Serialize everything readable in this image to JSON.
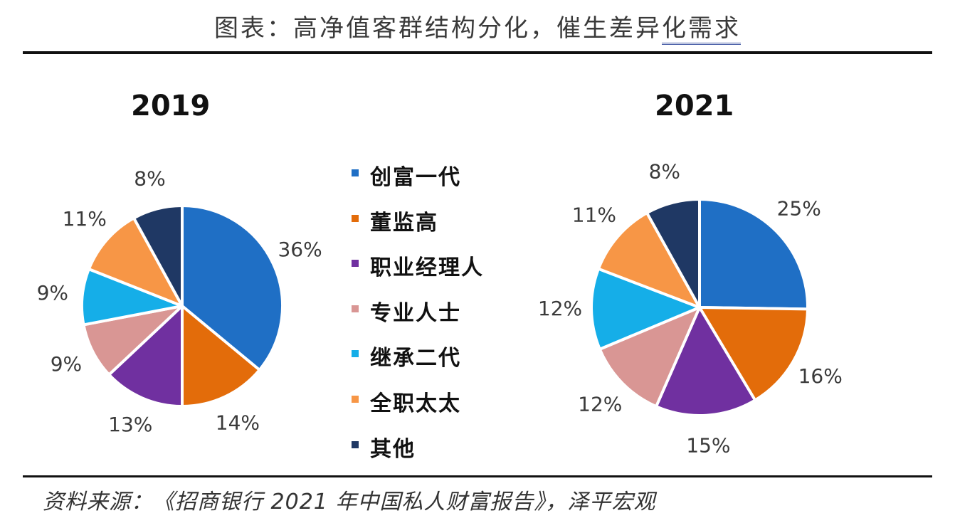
{
  "title": {
    "main": "图表：高净值客群结构分化，催生差异",
    "underlined": "化需求"
  },
  "source": "资料来源：《招商银行 2021 年中国私人财富报告》，泽平宏观",
  "colors": {
    "founders": "#1f6fc5",
    "shareholders": "#e36c0a",
    "managers": "#7030a0",
    "professionals": "#d99694",
    "second_gen": "#15aee8",
    "housewives": "#f79646",
    "other": "#1f3864"
  },
  "chart_data": {
    "type": "pie",
    "legend": [
      "创富一代",
      "董监高",
      "职业经理人",
      "专业人士",
      "继承二代",
      "全职太太",
      "其他"
    ],
    "charts": [
      {
        "title": "2019",
        "values": [
          36,
          14,
          13,
          9,
          9,
          11,
          8
        ],
        "labels": [
          "36%",
          "14%",
          "13%",
          "9%",
          "9%",
          "11%",
          "8%"
        ]
      },
      {
        "title": "2021",
        "values": [
          25,
          16,
          15,
          12,
          12,
          11,
          8
        ],
        "labels": [
          "25%",
          "16%",
          "15%",
          "12%",
          "12%",
          "11%",
          "8%"
        ]
      }
    ]
  }
}
